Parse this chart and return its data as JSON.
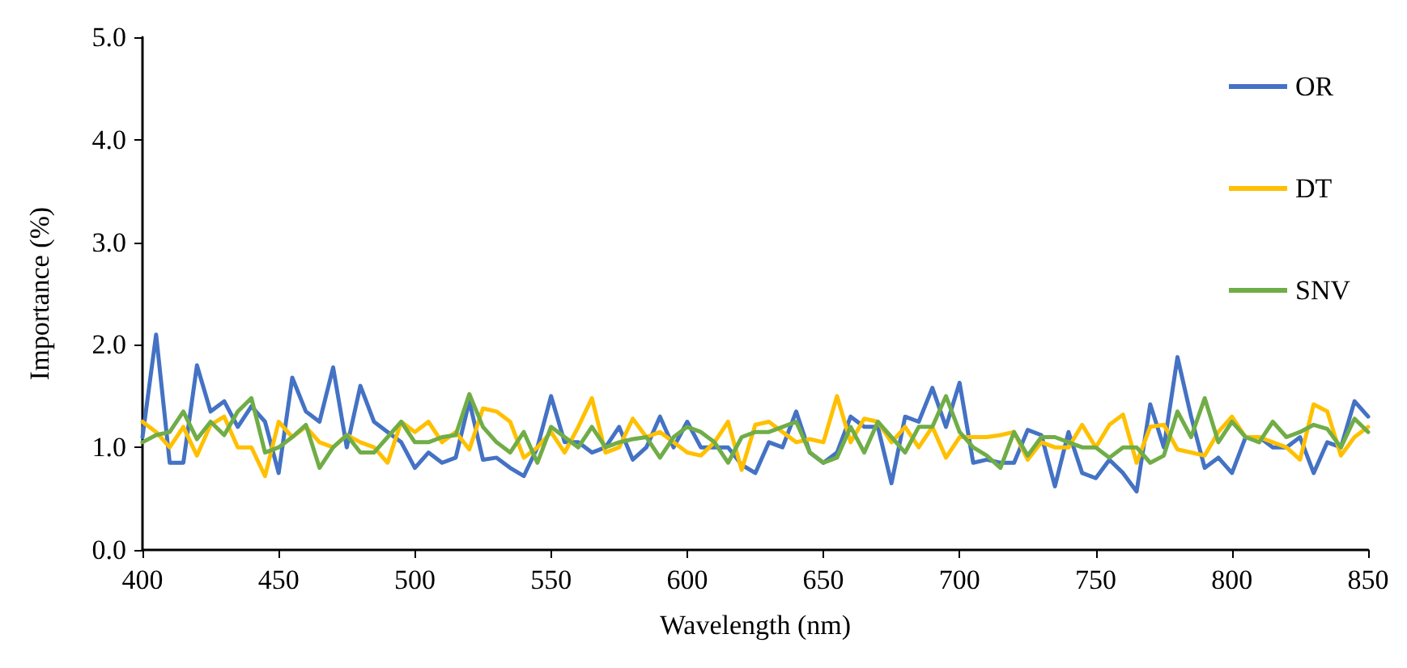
{
  "chart_data": {
    "type": "line",
    "xlabel": "Wavelength (nm)",
    "ylabel": "Importance (%)",
    "x": [
      400,
      405,
      410,
      415,
      420,
      425,
      430,
      435,
      440,
      445,
      450,
      455,
      460,
      465,
      470,
      475,
      480,
      485,
      490,
      495,
      500,
      505,
      510,
      515,
      520,
      525,
      530,
      535,
      540,
      545,
      550,
      555,
      560,
      565,
      570,
      575,
      580,
      585,
      590,
      595,
      600,
      605,
      610,
      615,
      620,
      625,
      630,
      635,
      640,
      645,
      650,
      655,
      660,
      665,
      670,
      675,
      680,
      685,
      690,
      695,
      700,
      705,
      710,
      715,
      720,
      725,
      730,
      735,
      740,
      745,
      750,
      755,
      760,
      765,
      770,
      775,
      780,
      785,
      790,
      795,
      800,
      805,
      810,
      815,
      820,
      825,
      830,
      835,
      840,
      845,
      850
    ],
    "series": [
      {
        "name": "OR",
        "color": "#4472c4",
        "values": [
          1.1,
          2.1,
          0.85,
          0.85,
          1.8,
          1.35,
          1.45,
          1.2,
          1.4,
          1.25,
          0.75,
          1.68,
          1.35,
          1.25,
          1.78,
          1.0,
          1.6,
          1.25,
          1.15,
          1.05,
          0.8,
          0.95,
          0.85,
          0.9,
          1.45,
          0.88,
          0.9,
          0.8,
          0.72,
          1.0,
          1.5,
          1.05,
          1.05,
          0.95,
          1.0,
          1.2,
          0.88,
          1.0,
          1.3,
          1.0,
          1.25,
          1.0,
          1.0,
          1.0,
          0.83,
          0.75,
          1.05,
          1.0,
          1.35,
          0.95,
          0.85,
          0.95,
          1.3,
          1.2,
          1.2,
          0.65,
          1.3,
          1.25,
          1.58,
          1.2,
          1.63,
          0.85,
          0.88,
          0.85,
          0.85,
          1.17,
          1.12,
          0.62,
          1.15,
          0.75,
          0.7,
          0.88,
          0.75,
          0.57,
          1.42,
          1.0,
          1.88,
          1.3,
          0.8,
          0.9,
          0.75,
          1.1,
          1.1,
          1.0,
          1.0,
          1.1,
          0.75,
          1.05,
          1.0,
          1.45,
          1.3
        ]
      },
      {
        "name": "DT",
        "color": "#ffc000",
        "values": [
          1.25,
          1.15,
          1.0,
          1.2,
          0.92,
          1.22,
          1.3,
          1.0,
          1.0,
          0.72,
          1.25,
          1.1,
          1.2,
          1.05,
          1.0,
          1.12,
          1.05,
          1.0,
          0.85,
          1.25,
          1.15,
          1.25,
          1.05,
          1.15,
          0.98,
          1.38,
          1.35,
          1.25,
          0.9,
          1.0,
          1.15,
          0.95,
          1.2,
          1.48,
          0.95,
          1.0,
          1.28,
          1.1,
          1.15,
          1.05,
          0.95,
          0.92,
          1.05,
          1.25,
          0.78,
          1.22,
          1.25,
          1.15,
          1.05,
          1.08,
          1.05,
          1.5,
          1.05,
          1.28,
          1.25,
          1.05,
          1.2,
          1.0,
          1.2,
          0.9,
          1.1,
          1.1,
          1.1,
          1.12,
          1.15,
          0.88,
          1.05,
          1.0,
          1.0,
          1.22,
          1.0,
          1.22,
          1.32,
          0.85,
          1.2,
          1.22,
          0.98,
          0.95,
          0.92,
          1.15,
          1.3,
          1.1,
          1.1,
          1.05,
          1.0,
          0.88,
          1.42,
          1.35,
          0.92,
          1.1,
          1.2
        ]
      },
      {
        "name": "SNV",
        "color": "#70ad47",
        "values": [
          1.05,
          1.12,
          1.15,
          1.35,
          1.08,
          1.25,
          1.12,
          1.35,
          1.48,
          0.95,
          1.0,
          1.1,
          1.22,
          0.8,
          1.0,
          1.12,
          0.95,
          0.95,
          1.1,
          1.25,
          1.05,
          1.05,
          1.1,
          1.12,
          1.52,
          1.2,
          1.05,
          0.95,
          1.15,
          0.85,
          1.2,
          1.1,
          1.0,
          1.2,
          1.0,
          1.05,
          1.08,
          1.1,
          0.9,
          1.1,
          1.2,
          1.15,
          1.05,
          0.85,
          1.1,
          1.15,
          1.15,
          1.2,
          1.25,
          0.95,
          0.85,
          0.9,
          1.2,
          0.95,
          1.25,
          1.1,
          0.95,
          1.2,
          1.2,
          1.5,
          1.15,
          1.0,
          0.92,
          0.8,
          1.15,
          0.92,
          1.1,
          1.1,
          1.05,
          1.0,
          1.0,
          0.9,
          1.0,
          1.0,
          0.85,
          0.92,
          1.35,
          1.1,
          1.48,
          1.05,
          1.25,
          1.1,
          1.05,
          1.25,
          1.1,
          1.15,
          1.22,
          1.18,
          1.0,
          1.28,
          1.15
        ]
      }
    ],
    "xlim": [
      400,
      850
    ],
    "xticks": [
      400,
      450,
      500,
      550,
      600,
      650,
      700,
      750,
      800,
      850
    ],
    "ylim": [
      0,
      5
    ],
    "yticks": [
      {
        "value": 0,
        "label": "0.0"
      },
      {
        "value": 1,
        "label": "1.0"
      },
      {
        "value": 2,
        "label": "2.0"
      },
      {
        "value": 3,
        "label": "3.0"
      },
      {
        "value": 4,
        "label": "4.0"
      },
      {
        "value": 5,
        "label": "5.0"
      }
    ],
    "grid": false,
    "legend": "right",
    "marker": "none",
    "line_style": "solid"
  }
}
